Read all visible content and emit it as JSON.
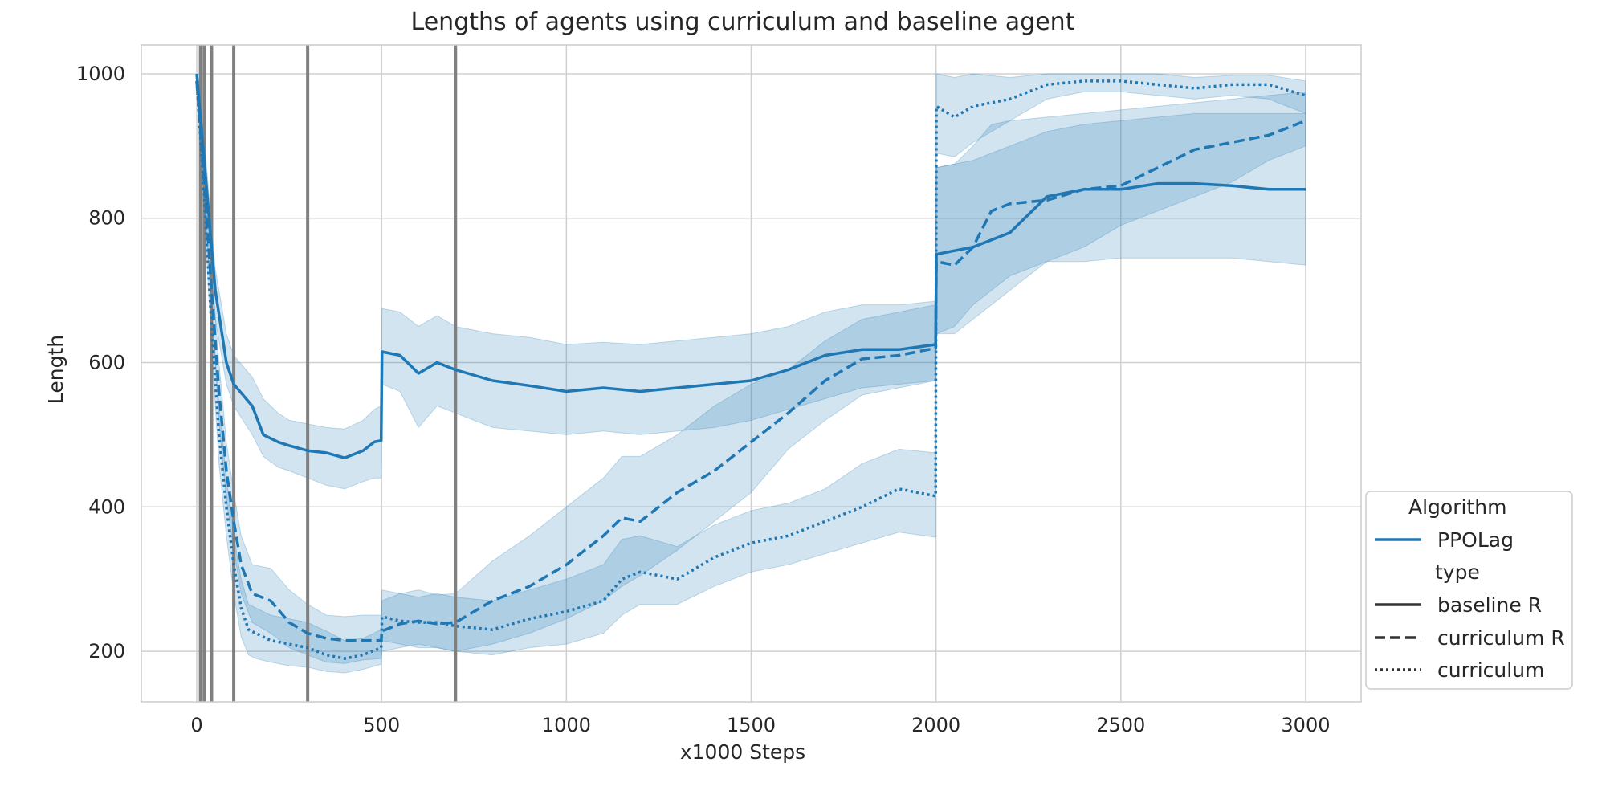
{
  "chart_data": {
    "type": "line",
    "title": "Lengths of agents using curriculum and baseline agent",
    "xlabel": "x1000 Steps",
    "ylabel": "Length",
    "xlim": [
      -150,
      3150
    ],
    "ylim": [
      130,
      1040
    ],
    "xticks": [
      0,
      500,
      1000,
      1500,
      2000,
      2500,
      3000
    ],
    "xtick_labels": [
      "0",
      "500",
      "1000",
      "1500",
      "2000",
      "2500",
      "3000"
    ],
    "yticks": [
      200,
      400,
      600,
      800,
      1000
    ],
    "ytick_labels": [
      "200",
      "400",
      "600",
      "800",
      "1000"
    ],
    "grid": true,
    "colors": {
      "series": "#1f77b4",
      "band": "#1f77b4",
      "vline": "#808080",
      "grid": "#d0d0d0",
      "legend_swatch": "#333333"
    },
    "vertical_lines_x": [
      10,
      20,
      40,
      100,
      300,
      700
    ],
    "legend": {
      "placement": "lower right outside",
      "title1": "Algorithm",
      "algorithm": "PPOLag",
      "title2": "type",
      "entries": [
        "baseline R",
        "curriculum R",
        "curriculum"
      ]
    },
    "series": [
      {
        "name": "baseline R",
        "style": "solid",
        "x": [
          0,
          20,
          50,
          80,
          100,
          150,
          180,
          220,
          250,
          300,
          350,
          400,
          450,
          480,
          499,
          501,
          550,
          600,
          650,
          700,
          800,
          900,
          1000,
          1100,
          1200,
          1300,
          1400,
          1500,
          1600,
          1700,
          1800,
          1900,
          1999,
          2001,
          2050,
          2100,
          2200,
          2300,
          2400,
          2500,
          2600,
          2700,
          2800,
          2900,
          3000
        ],
        "y": [
          1000,
          880,
          700,
          600,
          570,
          540,
          500,
          490,
          485,
          478,
          475,
          468,
          478,
          490,
          492,
          615,
          610,
          585,
          600,
          590,
          575,
          568,
          560,
          565,
          560,
          565,
          570,
          575,
          590,
          610,
          618,
          618,
          625,
          750,
          755,
          760,
          780,
          830,
          840,
          840,
          848,
          848,
          845,
          840,
          840
        ],
        "lower": [
          1000,
          850,
          660,
          570,
          540,
          500,
          470,
          455,
          450,
          440,
          430,
          425,
          435,
          440,
          440,
          570,
          560,
          510,
          540,
          530,
          510,
          505,
          500,
          505,
          500,
          505,
          510,
          520,
          535,
          550,
          565,
          570,
          575,
          640,
          640,
          660,
          700,
          740,
          740,
          745,
          745,
          745,
          745,
          740,
          735
        ],
        "upper": [
          1000,
          910,
          730,
          640,
          610,
          580,
          550,
          530,
          520,
          515,
          510,
          508,
          520,
          535,
          540,
          675,
          670,
          650,
          665,
          650,
          640,
          635,
          625,
          628,
          625,
          630,
          635,
          640,
          650,
          670,
          680,
          680,
          685,
          870,
          875,
          880,
          900,
          920,
          930,
          935,
          940,
          945,
          945,
          945,
          945
        ]
      },
      {
        "name": "curriculum R",
        "style": "dashed",
        "x": [
          0,
          20,
          40,
          60,
          80,
          100,
          120,
          150,
          200,
          250,
          300,
          350,
          400,
          450,
          499,
          501,
          550,
          600,
          650,
          700,
          800,
          900,
          1000,
          1100,
          1150,
          1200,
          1300,
          1400,
          1500,
          1600,
          1700,
          1800,
          1900,
          1999,
          2001,
          2050,
          2100,
          2150,
          2200,
          2300,
          2400,
          2500,
          2600,
          2700,
          2800,
          2900,
          3000
        ],
        "y": [
          990,
          850,
          700,
          560,
          450,
          380,
          320,
          280,
          270,
          240,
          225,
          218,
          215,
          215,
          215,
          228,
          238,
          242,
          238,
          240,
          270,
          290,
          320,
          360,
          385,
          380,
          420,
          450,
          490,
          530,
          575,
          605,
          610,
          620,
          740,
          735,
          760,
          810,
          820,
          825,
          840,
          845,
          870,
          895,
          905,
          915,
          935
        ],
        "lower": [
          990,
          830,
          670,
          520,
          410,
          340,
          280,
          240,
          225,
          205,
          195,
          185,
          183,
          188,
          190,
          200,
          205,
          210,
          205,
          200,
          210,
          225,
          245,
          270,
          290,
          305,
          340,
          380,
          420,
          480,
          520,
          555,
          565,
          575,
          640,
          650,
          680,
          700,
          720,
          740,
          760,
          790,
          810,
          830,
          850,
          880,
          900
        ],
        "upper": [
          990,
          870,
          730,
          600,
          490,
          420,
          360,
          320,
          315,
          285,
          265,
          250,
          248,
          250,
          250,
          270,
          280,
          285,
          278,
          280,
          325,
          360,
          400,
          440,
          470,
          470,
          500,
          540,
          570,
          590,
          630,
          660,
          670,
          680,
          870,
          875,
          900,
          930,
          935,
          940,
          945,
          950,
          955,
          960,
          965,
          970,
          975
        ]
      },
      {
        "name": "curriculum",
        "style": "dotted",
        "x": [
          0,
          20,
          40,
          60,
          80,
          100,
          120,
          140,
          160,
          200,
          250,
          300,
          350,
          400,
          450,
          499,
          501,
          550,
          600,
          650,
          700,
          800,
          900,
          1000,
          1100,
          1150,
          1200,
          1300,
          1400,
          1500,
          1600,
          1700,
          1800,
          1900,
          1999,
          2001,
          2050,
          2100,
          2200,
          2300,
          2400,
          2500,
          2600,
          2700,
          2800,
          2900,
          3000
        ],
        "y": [
          990,
          830,
          650,
          500,
          400,
          320,
          260,
          230,
          225,
          215,
          210,
          205,
          195,
          190,
          195,
          205,
          248,
          242,
          240,
          240,
          235,
          230,
          245,
          255,
          270,
          300,
          310,
          300,
          330,
          350,
          360,
          380,
          400,
          425,
          415,
          955,
          940,
          955,
          965,
          985,
          990,
          990,
          985,
          980,
          985,
          985,
          970
        ],
        "lower": [
          990,
          810,
          620,
          460,
          360,
          280,
          220,
          195,
          190,
          185,
          180,
          178,
          172,
          170,
          175,
          182,
          215,
          210,
          205,
          205,
          200,
          195,
          205,
          210,
          225,
          250,
          265,
          265,
          290,
          310,
          320,
          335,
          350,
          365,
          358,
          890,
          885,
          905,
          935,
          965,
          975,
          975,
          970,
          965,
          970,
          965,
          945
        ],
        "upper": [
          990,
          850,
          680,
          540,
          440,
          360,
          300,
          265,
          260,
          250,
          245,
          240,
          228,
          215,
          218,
          230,
          285,
          280,
          275,
          280,
          275,
          270,
          285,
          300,
          320,
          355,
          360,
          345,
          375,
          395,
          405,
          425,
          460,
          480,
          475,
          1000,
          995,
          1000,
          995,
          1000,
          1000,
          1000,
          1000,
          995,
          998,
          998,
          990
        ]
      }
    ]
  }
}
